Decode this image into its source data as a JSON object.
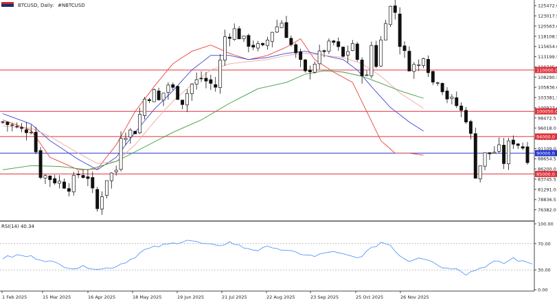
{
  "chart_data": {
    "type": "candlestick",
    "symbol_label": "BTCUSD, Daily:",
    "symbol_desc": "#NBTCUSD",
    "x_ticks": [
      "1 Feb 2025",
      "15 Mar 2025",
      "16 Apr 2025",
      "18 May 2025",
      "19 Jun 2025",
      "21 Jul 2025",
      "22 Aug 2025",
      "23 Sep 2025",
      "25 Oct 2025",
      "26 Nov 2025"
    ],
    "y_ticks": [
      "125472.0",
      "123017.5",
      "120563.0",
      "118108.5",
      "115654.0",
      "113199.5",
      "110745.0",
      "108290.5",
      "105836.0",
      "103381.5",
      "100927.0",
      "98472.5",
      "96018.0",
      "93563.5",
      "91109.0",
      "88654.5",
      "86200.0",
      "83745.5",
      "81291.0",
      "78836.5",
      "76382.0"
    ],
    "y_range": [
      74000,
      126500
    ],
    "horizontal_lines": [
      {
        "label": "110000.0",
        "value": 110000,
        "color": "#e0303a"
      },
      {
        "label": "100050.0",
        "value": 100050,
        "color": "#e0303a"
      },
      {
        "label": "94000.0",
        "value": 94000,
        "color": "#e0303a"
      },
      {
        "label": "90000.0",
        "value": 90000,
        "color": "#2233cc"
      },
      {
        "label": "85000.0",
        "value": 85000,
        "color": "#e0303a"
      }
    ],
    "moving_averages": [
      {
        "color": "#e8423e",
        "anchors": [
          [
            0,
            98000
          ],
          [
            6,
            95500
          ],
          [
            10,
            89000
          ],
          [
            16,
            86000
          ],
          [
            20,
            86200
          ],
          [
            24,
            92000
          ],
          [
            28,
            100000
          ],
          [
            32,
            106000
          ],
          [
            36,
            111500
          ],
          [
            40,
            114500
          ],
          [
            44,
            116000
          ],
          [
            48,
            114000
          ],
          [
            52,
            112500
          ],
          [
            56,
            113500
          ],
          [
            60,
            115500
          ],
          [
            63,
            117500
          ],
          [
            66,
            112500
          ],
          [
            70,
            109500
          ],
          [
            74,
            107000
          ],
          [
            77,
            100000
          ],
          [
            80,
            93000
          ],
          [
            83,
            90000
          ],
          [
            86,
            90000
          ],
          [
            89,
            89500
          ]
        ]
      },
      {
        "color": "#3a46d6",
        "anchors": [
          [
            0,
            99500
          ],
          [
            6,
            97000
          ],
          [
            10,
            93000
          ],
          [
            16,
            88500
          ],
          [
            20,
            86000
          ],
          [
            24,
            89000
          ],
          [
            28,
            95000
          ],
          [
            32,
            100500
          ],
          [
            36,
            105000
          ],
          [
            40,
            110000
          ],
          [
            44,
            113500
          ],
          [
            48,
            113500
          ],
          [
            52,
            112500
          ],
          [
            56,
            113000
          ],
          [
            60,
            114000
          ],
          [
            64,
            114500
          ],
          [
            68,
            113500
          ],
          [
            72,
            112500
          ],
          [
            75,
            110000
          ],
          [
            78,
            106000
          ],
          [
            82,
            101000
          ],
          [
            86,
            97500
          ],
          [
            89,
            95300
          ]
        ]
      },
      {
        "color": "#f0a6a0",
        "anchors": [
          [
            0,
            96500
          ],
          [
            6,
            96000
          ],
          [
            10,
            94000
          ],
          [
            16,
            90000
          ],
          [
            20,
            87500
          ],
          [
            24,
            88000
          ],
          [
            28,
            92000
          ],
          [
            32,
            97500
          ],
          [
            36,
            102500
          ],
          [
            40,
            106500
          ],
          [
            44,
            110000
          ],
          [
            48,
            111500
          ],
          [
            52,
            112000
          ],
          [
            56,
            112500
          ],
          [
            60,
            113500
          ],
          [
            64,
            114000
          ],
          [
            68,
            113500
          ],
          [
            72,
            113000
          ],
          [
            76,
            111500
          ],
          [
            80,
            108500
          ],
          [
            84,
            104500
          ],
          [
            89,
            100800
          ]
        ]
      },
      {
        "color": "#3f9a3f",
        "anchors": [
          [
            0,
            86000
          ],
          [
            6,
            87000
          ],
          [
            12,
            86800
          ],
          [
            18,
            86000
          ],
          [
            24,
            88000
          ],
          [
            30,
            91500
          ],
          [
            36,
            95000
          ],
          [
            42,
            98000
          ],
          [
            48,
            102000
          ],
          [
            54,
            105500
          ],
          [
            60,
            107000
          ],
          [
            64,
            109000
          ],
          [
            68,
            109800
          ],
          [
            72,
            109500
          ],
          [
            76,
            108500
          ],
          [
            80,
            106800
          ],
          [
            84,
            105000
          ],
          [
            89,
            103200
          ]
        ]
      }
    ],
    "price_path": [
      [
        0,
        97500
      ],
      [
        4,
        95500
      ],
      [
        6,
        96000
      ],
      [
        8,
        85000
      ],
      [
        10,
        84000
      ],
      [
        14,
        82000
      ],
      [
        16,
        85000
      ],
      [
        18,
        84500
      ],
      [
        20,
        76500
      ],
      [
        22,
        84000
      ],
      [
        24,
        86000
      ],
      [
        25,
        94500
      ],
      [
        28,
        95500
      ],
      [
        30,
        103000
      ],
      [
        32,
        104500
      ],
      [
        33,
        102500
      ],
      [
        35,
        106500
      ],
      [
        37,
        104000
      ],
      [
        38,
        102500
      ],
      [
        40,
        106500
      ],
      [
        42,
        108000
      ],
      [
        45,
        106000
      ],
      [
        47,
        118000
      ],
      [
        49,
        119500
      ],
      [
        51,
        117000
      ],
      [
        52,
        116500
      ],
      [
        53,
        116000
      ],
      [
        55,
        115000
      ],
      [
        57,
        119500
      ],
      [
        59,
        121500
      ],
      [
        61,
        116000
      ],
      [
        62,
        113500
      ],
      [
        63,
        111500
      ],
      [
        64,
        109000
      ],
      [
        66,
        112000
      ],
      [
        68,
        115000
      ],
      [
        70,
        116500
      ],
      [
        72,
        113000
      ],
      [
        74,
        116500
      ],
      [
        75,
        111500
      ],
      [
        77,
        108000
      ],
      [
        78,
        116000
      ],
      [
        79,
        111500
      ],
      [
        81,
        122500
      ],
      [
        82,
        125000
      ],
      [
        83,
        124000
      ],
      [
        84,
        116500
      ],
      [
        86,
        111000
      ],
      [
        88,
        111000
      ],
      [
        89,
        114000
      ],
      [
        91,
        107000
      ],
      [
        92,
        108000
      ],
      [
        94,
        103500
      ],
      [
        96,
        101500
      ],
      [
        98,
        98500
      ],
      [
        99,
        94000
      ],
      [
        100,
        85000
      ],
      [
        102,
        89500
      ],
      [
        103,
        90000
      ],
      [
        105,
        90800
      ],
      [
        106,
        88000
      ],
      [
        107,
        92000
      ],
      [
        108,
        93000
      ],
      [
        110,
        91500
      ],
      [
        111,
        89000
      ]
    ],
    "rsi": {
      "label": "RSI(14) 40.34",
      "value": 40.34,
      "y_ticks": [
        "100.00",
        "70.00",
        "30.00",
        "0.00"
      ],
      "levels": [
        70,
        30
      ],
      "series": [
        [
          0,
          48
        ],
        [
          3,
          52
        ],
        [
          6,
          50
        ],
        [
          9,
          45
        ],
        [
          12,
          38
        ],
        [
          15,
          33
        ],
        [
          18,
          35
        ],
        [
          21,
          31
        ],
        [
          24,
          36
        ],
        [
          27,
          46
        ],
        [
          30,
          60
        ],
        [
          33,
          66
        ],
        [
          36,
          70
        ],
        [
          39,
          76
        ],
        [
          42,
          70
        ],
        [
          45,
          66
        ],
        [
          48,
          72
        ],
        [
          51,
          64
        ],
        [
          54,
          60
        ],
        [
          57,
          66
        ],
        [
          60,
          58
        ],
        [
          63,
          55
        ],
        [
          66,
          50
        ],
        [
          69,
          58
        ],
        [
          72,
          53
        ],
        [
          75,
          48
        ],
        [
          78,
          62
        ],
        [
          80,
          72
        ],
        [
          82,
          68
        ],
        [
          84,
          52
        ],
        [
          86,
          44
        ],
        [
          88,
          50
        ],
        [
          90,
          46
        ],
        [
          92,
          38
        ],
        [
          94,
          32
        ],
        [
          96,
          34
        ],
        [
          98,
          24
        ],
        [
          100,
          30
        ],
        [
          102,
          36
        ],
        [
          104,
          42
        ],
        [
          106,
          40
        ],
        [
          108,
          48
        ],
        [
          110,
          42
        ],
        [
          112,
          40.34
        ]
      ]
    }
  }
}
